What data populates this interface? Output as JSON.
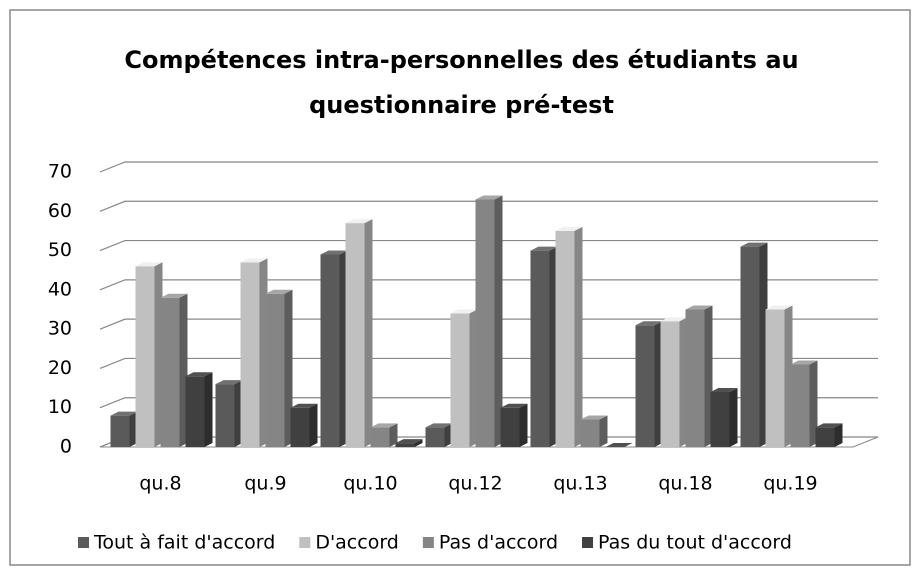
{
  "chart_data": {
    "type": "bar3d",
    "title": "Compétences intra-personnelles des étudiants au questionnaire pré-test",
    "categories": [
      "qu.8",
      "qu.9",
      "qu.10",
      "qu.12",
      "qu.13",
      "qu.18",
      "qu.19"
    ],
    "series": [
      {
        "name": "Tout à fait d'accord",
        "color": "#5a5a5a",
        "values": [
          8,
          16,
          49,
          5,
          50,
          31,
          51
        ]
      },
      {
        "name": "D'accord",
        "color": "#c0c0c0",
        "values": [
          46,
          47,
          57,
          34,
          55,
          32,
          35
        ]
      },
      {
        "name": "Pas d'accord",
        "color": "#858585",
        "values": [
          38,
          39,
          5,
          63,
          7,
          35,
          21
        ]
      },
      {
        "name": "Pas du tout d'accord",
        "color": "#404040",
        "values": [
          18,
          10,
          1,
          10,
          0,
          14,
          5
        ]
      }
    ],
    "ylim": [
      0,
      70
    ],
    "yticks": [
      0,
      10,
      20,
      30,
      40,
      50,
      60,
      70
    ],
    "grid": true,
    "legend": "bottom"
  }
}
